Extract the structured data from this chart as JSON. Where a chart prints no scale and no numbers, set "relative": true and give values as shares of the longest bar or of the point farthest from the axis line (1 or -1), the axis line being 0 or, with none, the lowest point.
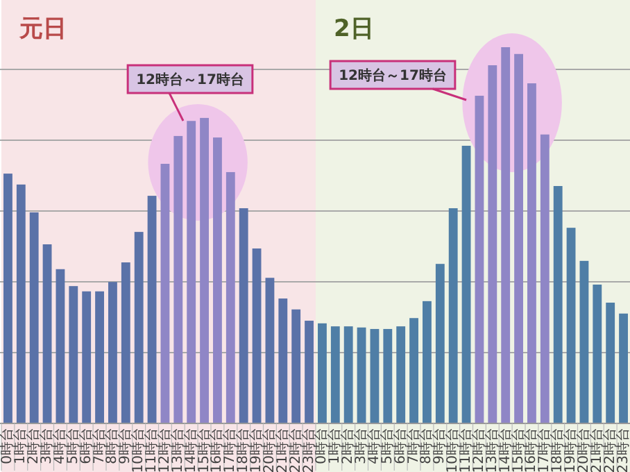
{
  "chart_data": {
    "type": "bar",
    "categories": [
      "0時台",
      "1時台",
      "2時台",
      "3時台",
      "4時台",
      "5時台",
      "6時台",
      "7時台",
      "8時台",
      "9時台",
      "10時台",
      "11時台",
      "12時台",
      "13時台",
      "14時台",
      "15時台",
      "16時台",
      "17時台",
      "18時台",
      "19時台",
      "20時台",
      "21時台",
      "22時台",
      "23時台",
      "0時台",
      "1時台",
      "2時台",
      "3時台",
      "4時台",
      "5時台",
      "6時台",
      "7時台",
      "8時台",
      "9時台",
      "10時台",
      "11時台",
      "12時台",
      "13時台",
      "14時台",
      "15時台",
      "16時台",
      "17時台",
      "18時台",
      "19時台",
      "20時台",
      "21時台",
      "22時台",
      "23時台"
    ],
    "values": [
      0.664,
      0.635,
      0.561,
      0.476,
      0.41,
      0.365,
      0.351,
      0.351,
      0.376,
      0.428,
      0.509,
      0.605,
      0.69,
      0.764,
      0.804,
      0.812,
      0.76,
      0.668,
      0.572,
      0.465,
      0.387,
      0.332,
      0.303,
      0.273,
      0.266,
      0.258,
      0.258,
      0.255,
      0.251,
      0.251,
      0.258,
      0.28,
      0.325,
      0.424,
      0.572,
      0.738,
      0.871,
      0.952,
      1,
      0.982,
      0.904,
      0.768,
      0.631,
      0.52,
      0.432,
      0.369,
      0.321,
      0.292
    ],
    "colors": [
      "#5a72a8",
      "#5a72a8",
      "#5a72a8",
      "#5a72a8",
      "#5a72a8",
      "#5a72a8",
      "#5a72a8",
      "#5a72a8",
      "#5a72a8",
      "#5a72a8",
      "#5a72a8",
      "#5a72a8",
      "#8f86c6",
      "#8f86c6",
      "#8f86c6",
      "#8f86c6",
      "#8f86c6",
      "#8f86c6",
      "#5a72a8",
      "#5a72a8",
      "#5a72a8",
      "#5a72a8",
      "#5a72a8",
      "#5a72a8",
      "#4f7ea6",
      "#4f7ea6",
      "#4f7ea6",
      "#4f7ea6",
      "#4f7ea6",
      "#4f7ea6",
      "#4f7ea6",
      "#4f7ea6",
      "#4f7ea6",
      "#4f7ea6",
      "#4f7ea6",
      "#4f7ea6",
      "#8f86c6",
      "#8f86c6",
      "#8f86c6",
      "#8f86c6",
      "#8f86c6",
      "#8f86c6",
      "#4f7ea6",
      "#4f7ea6",
      "#4f7ea6",
      "#4f7ea6",
      "#4f7ea6",
      "#4f7ea6"
    ],
    "relative": true,
    "grid": true,
    "annotations": [
      "元日",
      "12時台～17時台",
      "2日",
      "12時台～17時台"
    ]
  }
}
